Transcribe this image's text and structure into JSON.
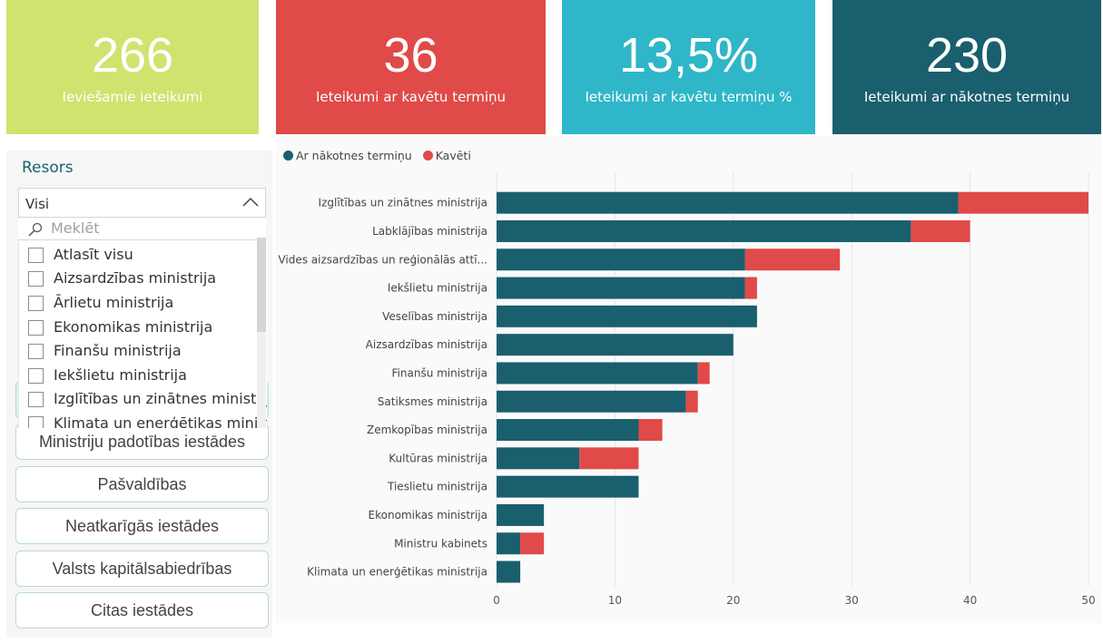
{
  "kpis": [
    {
      "value": "266",
      "label": "Ieviešamie ieteikumi",
      "color": "#d2e26f"
    },
    {
      "value": "36",
      "label": "Ieteikumi ar kavētu termiņu",
      "color": "#e04a48"
    },
    {
      "value": "13,5%",
      "label": "Ieteikumi ar kavētu termiņu %",
      "color": "#2fb6c8"
    },
    {
      "value": "230",
      "label": "Ieteikumi ar nākotnes termiņu",
      "color": "#1a5f6e"
    }
  ],
  "slicer": {
    "title": "Resors",
    "selected": "Visi",
    "search_placeholder": "Meklēt",
    "items": [
      "Atlasīt visu",
      "Aizsardzības ministrija",
      "Ārlietu ministrija",
      "Ekonomikas ministrija",
      "Finanšu ministrija",
      "Iekšlietu ministrija",
      "Izglītības un zinātnes ministrija",
      "Klimata un enerģētikas minist..."
    ]
  },
  "buttons": [
    "Ministriju padotības iestādes",
    "Pašvaldības",
    "Neatkarīgās iestādes",
    "Valsts kapitālsabiedrības",
    "Citas iestādes"
  ],
  "legend": {
    "future": "Ar nākotnes termiņu",
    "overdue": "Kavēti"
  },
  "colors": {
    "future": "#1a5f6e",
    "overdue": "#e04a48"
  },
  "chart_data": {
    "type": "bar",
    "orientation": "horizontal",
    "stacked": true,
    "categories": [
      "Izglītības un zinātnes ministrija",
      "Labklājības ministrija",
      "Vides aizsardzības un reģionālās attī...",
      "Iekšlietu ministrija",
      "Veselības ministrija",
      "Aizsardzības ministrija",
      "Finanšu ministrija",
      "Satiksmes ministrija",
      "Zemkopības ministrija",
      "Kultūras ministrija",
      "Tieslietu ministrija",
      "Ekonomikas ministrija",
      "Ministru kabinets",
      "Klimata un enerģētikas ministrija"
    ],
    "series": [
      {
        "name": "Ar nākotnes termiņu",
        "values": [
          39,
          35,
          21,
          21,
          22,
          20,
          17,
          16,
          12,
          7,
          12,
          4,
          2,
          2
        ]
      },
      {
        "name": "Kavēti",
        "values": [
          11,
          5,
          8,
          1,
          0,
          0,
          1,
          1,
          2,
          5,
          0,
          0,
          2,
          0
        ]
      }
    ],
    "xlim": [
      0,
      50
    ],
    "xticks": [
      0,
      10,
      20,
      30,
      40,
      50
    ],
    "grid": true,
    "legend": "top-left"
  }
}
